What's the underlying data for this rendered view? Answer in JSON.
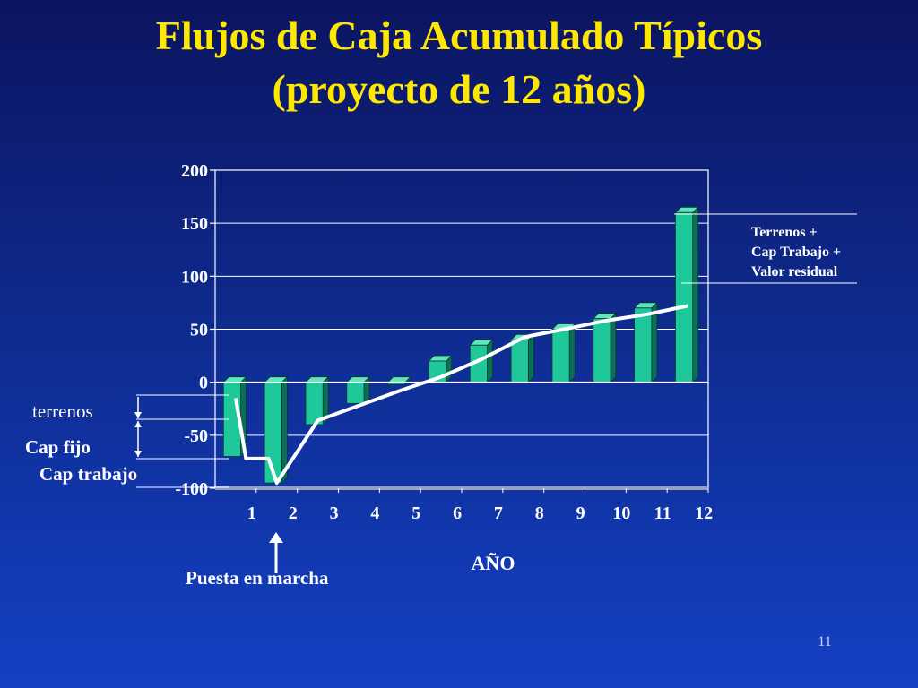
{
  "slide": {
    "title_line1": "Flujos de Caja Acumulado Típicos",
    "title_line2": "(proyecto de 12 años)",
    "page_number": "11",
    "colors": {
      "background": "#1030a0",
      "title": "#ffe800",
      "bars": "#1fc89a",
      "line": "#ffffff"
    }
  },
  "chart_data": {
    "type": "bar",
    "title": "",
    "xlabel": "AÑO",
    "ylabel": "",
    "categories": [
      "1",
      "2",
      "3",
      "4",
      "5",
      "6",
      "7",
      "8",
      "9",
      "10",
      "11",
      "12"
    ],
    "values": [
      -70,
      -95,
      -40,
      -20,
      -2,
      20,
      35,
      40,
      50,
      60,
      70,
      160
    ],
    "ylim": [
      -100,
      200
    ],
    "yticks": [
      "200",
      "150",
      "100",
      "50",
      "0",
      "-50",
      "-100"
    ],
    "ytick_values": [
      200,
      150,
      100,
      50,
      0,
      -50,
      -100
    ],
    "grid": true,
    "trend_line": {
      "x": [
        1,
        1.25,
        1.8,
        2,
        3,
        4,
        5,
        6,
        7,
        8,
        8.2,
        9,
        10,
        11,
        12
      ],
      "y": [
        -15,
        -72,
        -72,
        -95,
        -36,
        -22,
        -8,
        5,
        22,
        42,
        44,
        50,
        58,
        64,
        72
      ],
      "color": "#ffffff"
    },
    "annotations": {
      "right_note": [
        "Terrenos +",
        "Cap Trabajo +",
        "Valor residual"
      ],
      "terrenos": "terrenos",
      "cap_fijo": "Cap fijo",
      "cap_trabajo": "Cap trabajo",
      "puesta": "Puesta en marcha"
    }
  }
}
